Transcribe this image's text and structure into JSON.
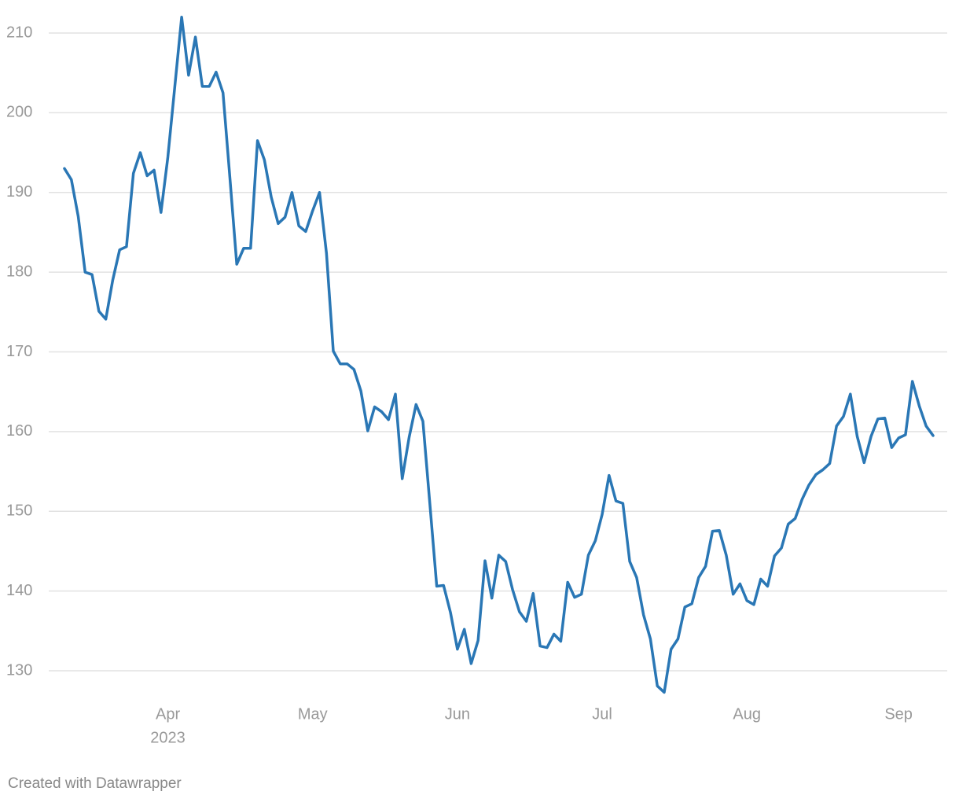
{
  "chart_data": {
    "type": "line",
    "categories": [
      null,
      null,
      null,
      null,
      null,
      null,
      null,
      null,
      null,
      null,
      null,
      null,
      null,
      null,
      null,
      "Apr",
      null,
      null,
      null,
      null,
      null,
      null,
      null,
      null,
      null,
      null,
      null,
      null,
      null,
      null,
      null,
      null,
      null,
      null,
      null,
      null,
      "May",
      null,
      null,
      null,
      null,
      null,
      null,
      null,
      null,
      null,
      null,
      null,
      null,
      null,
      null,
      null,
      null,
      null,
      null,
      null,
      null,
      "Jun",
      null,
      null,
      null,
      null,
      null,
      null,
      null,
      null,
      null,
      null,
      null,
      null,
      null,
      null,
      null,
      null,
      null,
      null,
      null,
      null,
      "Jul",
      null,
      null,
      null,
      null,
      null,
      null,
      null,
      null,
      null,
      null,
      null,
      null,
      null,
      null,
      null,
      null,
      null,
      null,
      null,
      null,
      "Aug",
      null,
      null,
      null,
      null,
      null,
      null,
      null,
      null,
      null,
      null,
      null,
      null,
      null,
      null,
      null,
      null,
      null,
      null,
      null,
      null,
      null,
      "Sep",
      null,
      null,
      null,
      null,
      null
    ],
    "year_label": "2023",
    "values": [
      193.0,
      191.6,
      187.0,
      180.0,
      179.7,
      175.1,
      174.1,
      179.0,
      182.8,
      183.2,
      192.4,
      195.0,
      192.1,
      192.8,
      187.5,
      194.4,
      203.2,
      212.0,
      204.7,
      209.5,
      203.3,
      203.3,
      205.1,
      202.5,
      191.8,
      181.0,
      183.0,
      183.0,
      196.5,
      194.1,
      189.4,
      186.1,
      186.9,
      190.0,
      185.8,
      185.1,
      187.7,
      190.0,
      182.4,
      170.1,
      168.5,
      168.5,
      167.8,
      165.1,
      160.1,
      163.1,
      162.5,
      161.5,
      164.7,
      154.1,
      159.3,
      163.4,
      161.3,
      151.0,
      140.6,
      140.7,
      137.3,
      132.7,
      135.2,
      130.9,
      133.8,
      143.8,
      139.1,
      144.5,
      143.7,
      140.2,
      137.4,
      136.2,
      139.7,
      133.1,
      132.9,
      134.6,
      133.7,
      141.1,
      139.2,
      139.6,
      144.5,
      146.3,
      149.6,
      154.5,
      151.3,
      151.0,
      143.7,
      141.7,
      137.0,
      134.0,
      128.1,
      127.3,
      132.7,
      134.0,
      138.0,
      138.4,
      141.7,
      143.1,
      147.5,
      147.6,
      144.5,
      139.6,
      140.9,
      138.8,
      138.3,
      141.5,
      140.6,
      144.4,
      145.4,
      148.4,
      149.1,
      151.5,
      153.3,
      154.6,
      155.2,
      156.0,
      160.7,
      161.9,
      164.7,
      159.4,
      156.1,
      159.4,
      161.6,
      161.7,
      158.0,
      159.2,
      159.6,
      166.3,
      163.2,
      160.7,
      159.5
    ],
    "color": "#2a77b5",
    "ylim": [
      130,
      210
    ],
    "yticks": [
      130,
      140,
      150,
      160,
      170,
      180,
      190,
      200,
      210
    ],
    "grid": true,
    "credit": "Created with Datawrapper"
  }
}
